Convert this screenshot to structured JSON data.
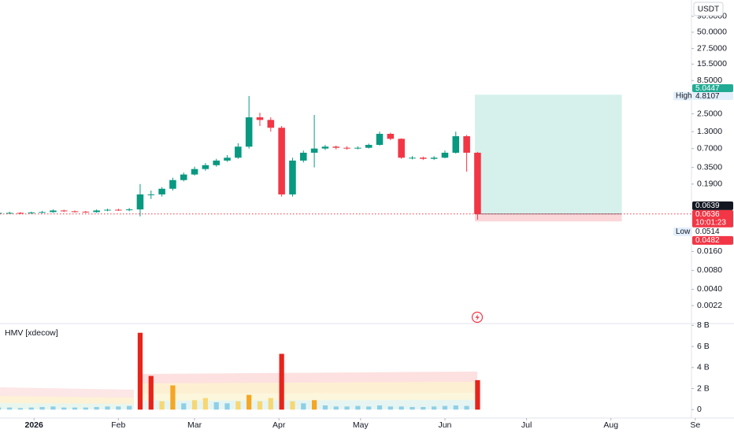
{
  "chart_data": [
    {
      "type": "candlestick",
      "currency": "USDT",
      "log_scale": true,
      "up_color": "#089981",
      "down_color": "#f23645",
      "x": [
        -13,
        -9,
        -5,
        -1,
        3,
        7,
        11,
        15,
        19,
        23,
        27,
        31,
        35,
        39,
        43,
        47,
        51,
        55,
        59,
        63,
        67,
        71,
        75,
        79,
        83,
        87,
        91,
        95,
        99,
        103,
        107,
        111,
        115,
        119,
        123,
        127,
        131,
        135,
        139,
        143,
        147,
        151,
        155,
        159,
        163
      ],
      "open": [
        0.065,
        0.066,
        0.066,
        0.065,
        0.067,
        0.068,
        0.072,
        0.07,
        0.069,
        0.068,
        0.072,
        0.074,
        0.073,
        0.075,
        0.13,
        0.13,
        0.16,
        0.22,
        0.27,
        0.33,
        0.38,
        0.45,
        0.5,
        0.75,
        2.2,
        2.0,
        1.5,
        0.13,
        0.45,
        0.6,
        0.7,
        0.75,
        0.72,
        0.7,
        0.72,
        0.8,
        1.2,
        1.0,
        0.5,
        0.5,
        0.48,
        0.5,
        0.6,
        1.1,
        0.6
      ],
      "high": [
        0.068,
        0.069,
        0.068,
        0.069,
        0.071,
        0.075,
        0.074,
        0.072,
        0.071,
        0.075,
        0.077,
        0.077,
        0.079,
        0.19,
        0.15,
        0.17,
        0.24,
        0.29,
        0.36,
        0.41,
        0.48,
        0.55,
        0.85,
        4.8107,
        2.6,
        2.2,
        1.6,
        0.5,
        0.65,
        2.4,
        0.8,
        0.78,
        0.76,
        0.76,
        0.84,
        1.3,
        1.25,
        1.02,
        0.53,
        0.52,
        0.53,
        0.65,
        1.3,
        1.15,
        0.62
      ],
      "low": [
        0.063,
        0.064,
        0.063,
        0.064,
        0.065,
        0.066,
        0.068,
        0.067,
        0.066,
        0.066,
        0.07,
        0.071,
        0.07,
        0.058,
        0.11,
        0.12,
        0.15,
        0.21,
        0.26,
        0.31,
        0.36,
        0.43,
        0.48,
        0.7,
        1.6,
        1.3,
        0.12,
        0.12,
        0.42,
        0.35,
        0.66,
        0.68,
        0.67,
        0.68,
        0.7,
        0.78,
        0.95,
        0.48,
        0.47,
        0.46,
        0.46,
        0.49,
        0.58,
        0.3,
        0.0514
      ],
      "close": [
        0.066,
        0.066,
        0.065,
        0.067,
        0.068,
        0.072,
        0.07,
        0.069,
        0.068,
        0.072,
        0.074,
        0.073,
        0.075,
        0.13,
        0.13,
        0.16,
        0.22,
        0.27,
        0.33,
        0.38,
        0.45,
        0.5,
        0.75,
        2.2,
        2.0,
        1.5,
        0.13,
        0.45,
        0.6,
        0.7,
        0.75,
        0.72,
        0.7,
        0.72,
        0.8,
        1.2,
        1.0,
        0.5,
        0.5,
        0.48,
        0.5,
        0.6,
        1.1,
        0.6,
        0.0636
      ],
      "xlim": [
        -12.5,
        241.6
      ],
      "xticks": [
        {
          "value": 0,
          "label": "2026"
        },
        {
          "value": 31,
          "label": "Feb"
        },
        {
          "value": 59,
          "label": "Mar"
        },
        {
          "value": 90,
          "label": "Apr"
        },
        {
          "value": 120,
          "label": "May"
        },
        {
          "value": 151,
          "label": "Jun"
        },
        {
          "value": 181,
          "label": "Jul"
        },
        {
          "value": 212,
          "label": "Aug"
        },
        {
          "value": 243,
          "label": "Se"
        }
      ],
      "ylim": [
        0.00117,
        163
      ],
      "yticks": [
        {
          "value": 90,
          "label": "90.0000"
        },
        {
          "value": 50,
          "label": "50.0000"
        },
        {
          "value": 27.5,
          "label": "27.5000"
        },
        {
          "value": 15.5,
          "label": "15.5000"
        },
        {
          "value": 8.5,
          "label": "8.5000"
        },
        {
          "value": 2.5,
          "label": "2.5000"
        },
        {
          "value": 1.3,
          "label": "1.3000"
        },
        {
          "value": 0.7,
          "label": "0.7000"
        },
        {
          "value": 0.35,
          "label": "0.3500"
        },
        {
          "value": 0.19,
          "label": "0.1900"
        },
        {
          "value": 0.016,
          "label": "0.0160"
        },
        {
          "value": 0.008,
          "label": "0.0080"
        },
        {
          "value": 0.004,
          "label": "0.0040"
        },
        {
          "value": 0.0022,
          "label": "0.0022"
        }
      ],
      "high_marker": {
        "label": "High",
        "value": 4.8107
      },
      "low_marker": {
        "label": "Low",
        "value": 0.0514
      },
      "price_tag": 0.0639,
      "last_price": 0.0636,
      "countdown": "10:01:23",
      "position": {
        "target": 5.0447,
        "entry": 0.0636,
        "stop": 0.0482,
        "x": [
          162,
          216
        ]
      }
    },
    {
      "type": "bar",
      "title": "HMV [xdecow]",
      "x": [
        -13,
        -9,
        -5,
        -1,
        3,
        7,
        11,
        15,
        19,
        23,
        27,
        31,
        35,
        39,
        43,
        47,
        51,
        55,
        59,
        63,
        67,
        71,
        75,
        79,
        83,
        87,
        91,
        95,
        99,
        103,
        107,
        111,
        115,
        119,
        123,
        127,
        131,
        135,
        139,
        143,
        147,
        151,
        155,
        159,
        163
      ],
      "values": [
        0.2,
        0.2,
        0.15,
        0.2,
        0.25,
        0.3,
        0.2,
        0.2,
        0.2,
        0.25,
        0.3,
        0.3,
        0.35,
        7.3,
        3.2,
        0.8,
        2.3,
        0.6,
        0.9,
        1.1,
        0.7,
        0.6,
        0.8,
        1.4,
        0.8,
        1.1,
        5.3,
        0.8,
        0.6,
        0.9,
        0.4,
        0.3,
        0.3,
        0.35,
        0.3,
        0.4,
        0.3,
        0.3,
        0.25,
        0.25,
        0.3,
        0.35,
        0.4,
        0.35,
        2.8
      ],
      "colors": [
        "#8fcfe6",
        "#8fcfe6",
        "#8fcfe6",
        "#8fcfe6",
        "#8fcfe6",
        "#8fcfe6",
        "#8fcfe6",
        "#8fcfe6",
        "#8fcfe6",
        "#8fcfe6",
        "#8fcfe6",
        "#8fcfe6",
        "#8fcfe6",
        "#e8231a",
        "#e8231a",
        "#f7d774",
        "#f5a623",
        "#8fcfe6",
        "#f7d774",
        "#f7d774",
        "#8fcfe6",
        "#8fcfe6",
        "#f7d774",
        "#f5a623",
        "#f7d774",
        "#f7d774",
        "#e8231a",
        "#f7d774",
        "#8fcfe6",
        "#f5a623",
        "#8fcfe6",
        "#8fcfe6",
        "#8fcfe6",
        "#8fcfe6",
        "#8fcfe6",
        "#8fcfe6",
        "#8fcfe6",
        "#8fcfe6",
        "#8fcfe6",
        "#8fcfe6",
        "#8fcfe6",
        "#8fcfe6",
        "#8fcfe6",
        "#8fcfe6",
        "#e8231a"
      ],
      "ylim": [
        -0.8,
        8.1
      ],
      "yticks": [
        {
          "value": 8,
          "label": "8 B"
        },
        {
          "value": 6,
          "label": "6 B"
        },
        {
          "value": 4,
          "label": "4 B"
        },
        {
          "value": 2,
          "label": "2 B"
        },
        0
      ]
    }
  ]
}
